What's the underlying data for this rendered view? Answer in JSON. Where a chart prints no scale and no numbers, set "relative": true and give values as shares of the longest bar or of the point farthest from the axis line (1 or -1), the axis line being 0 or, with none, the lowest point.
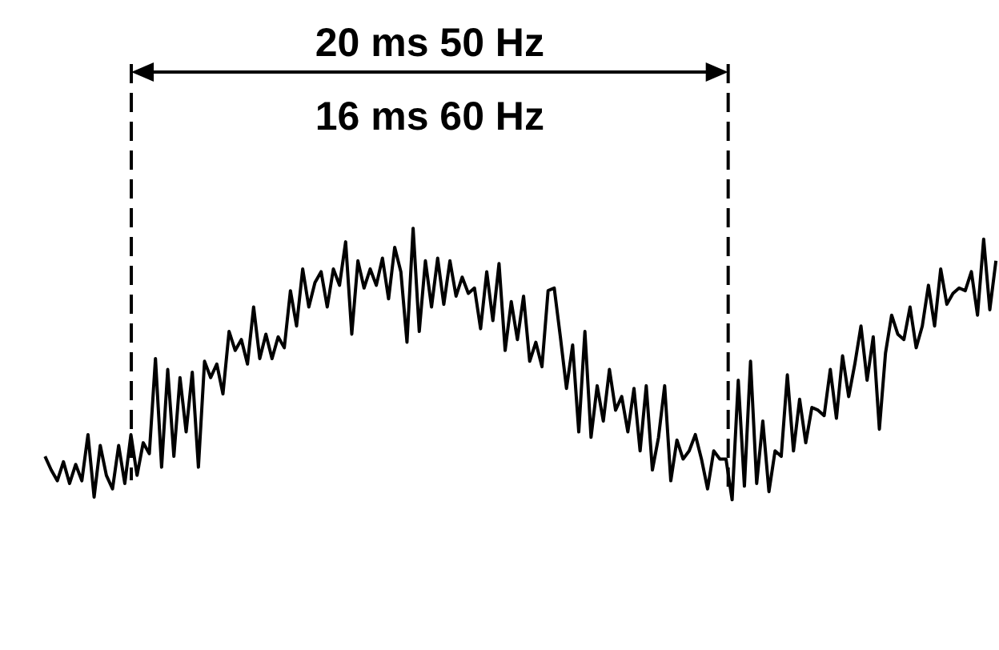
{
  "chart_data": {
    "type": "line",
    "relative": true,
    "marker": "none",
    "annotations": [
      "20 ms 50 Hz",
      "16 ms 60 Hz"
    ],
    "categories": [
      null,
      null,
      null,
      null,
      null,
      null,
      null,
      null,
      null,
      null,
      null,
      null,
      null,
      null,
      null,
      null,
      null,
      null,
      null,
      null,
      null,
      null,
      null,
      null,
      null,
      null,
      null,
      null,
      null,
      null,
      null,
      null,
      null,
      null,
      null,
      null,
      null,
      null,
      null,
      null,
      null,
      null,
      null,
      null,
      null,
      null,
      null,
      null,
      null,
      null,
      null,
      null,
      null,
      null,
      null,
      null,
      null,
      null,
      null,
      null,
      null,
      null,
      null,
      null,
      null,
      null,
      null,
      null,
      null,
      null,
      null,
      null,
      null,
      null,
      null,
      null,
      null,
      null,
      null,
      null,
      null,
      null,
      null,
      null,
      null,
      null,
      null,
      null,
      null,
      null,
      null,
      null,
      null,
      null,
      null,
      null,
      null,
      null,
      null,
      null,
      null,
      null,
      null,
      null,
      null,
      null,
      null,
      null,
      null,
      null,
      null,
      null,
      null,
      null,
      null,
      null,
      null,
      null,
      null,
      null,
      null,
      null,
      null,
      null,
      null,
      null,
      null,
      null,
      null,
      null,
      null,
      null,
      null,
      null,
      null,
      null,
      null,
      null,
      null,
      null,
      null,
      null,
      null,
      null,
      null,
      null,
      null,
      null,
      null,
      null,
      null,
      null,
      null,
      null,
      null,
      null
    ],
    "series": [
      {
        "color": "#000000",
        "values": [
          0.16,
          0.11,
          0.07,
          0.14,
          0.06,
          0.13,
          0.07,
          0.24,
          0.01,
          0.2,
          0.09,
          0.04,
          0.2,
          0.06,
          0.24,
          0.09,
          0.21,
          0.17,
          0.52,
          0.12,
          0.48,
          0.16,
          0.45,
          0.25,
          0.47,
          0.12,
          0.51,
          0.45,
          0.5,
          0.39,
          0.62,
          0.55,
          0.59,
          0.5,
          0.71,
          0.52,
          0.61,
          0.52,
          0.6,
          0.56,
          0.77,
          0.64,
          0.85,
          0.71,
          0.8,
          0.84,
          0.71,
          0.85,
          0.79,
          0.95,
          0.61,
          0.88,
          0.78,
          0.85,
          0.79,
          0.89,
          0.74,
          0.93,
          0.84,
          0.58,
          1,
          0.62,
          0.88,
          0.71,
          0.89,
          0.72,
          0.88,
          0.75,
          0.82,
          0.76,
          0.78,
          0.63,
          0.84,
          0.66,
          0.87,
          0.55,
          0.73,
          0.59,
          0.75,
          0.51,
          0.58,
          0.49,
          0.77,
          0.78,
          0.6,
          0.41,
          0.57,
          0.25,
          0.62,
          0.23,
          0.42,
          0.29,
          0.48,
          0.33,
          0.38,
          0.25,
          0.41,
          0.18,
          0.42,
          0.11,
          0.23,
          0.42,
          0.07,
          0.22,
          0.15,
          0.18,
          0.24,
          0.15,
          0.04,
          0.18,
          0.15,
          0.15,
          0,
          0.44,
          0.05,
          0.51,
          0.06,
          0.29,
          0.03,
          0.18,
          0.16,
          0.46,
          0.18,
          0.37,
          0.21,
          0.34,
          0.33,
          0.31,
          0.48,
          0.3,
          0.53,
          0.38,
          0.5,
          0.64,
          0.44,
          0.6,
          0.26,
          0.54,
          0.68,
          0.61,
          0.59,
          0.71,
          0.56,
          0.64,
          0.79,
          0.64,
          0.85,
          0.72,
          0.76,
          0.78,
          0.77,
          0.84,
          0.68,
          0.96,
          0.7,
          0.88
        ]
      }
    ]
  }
}
